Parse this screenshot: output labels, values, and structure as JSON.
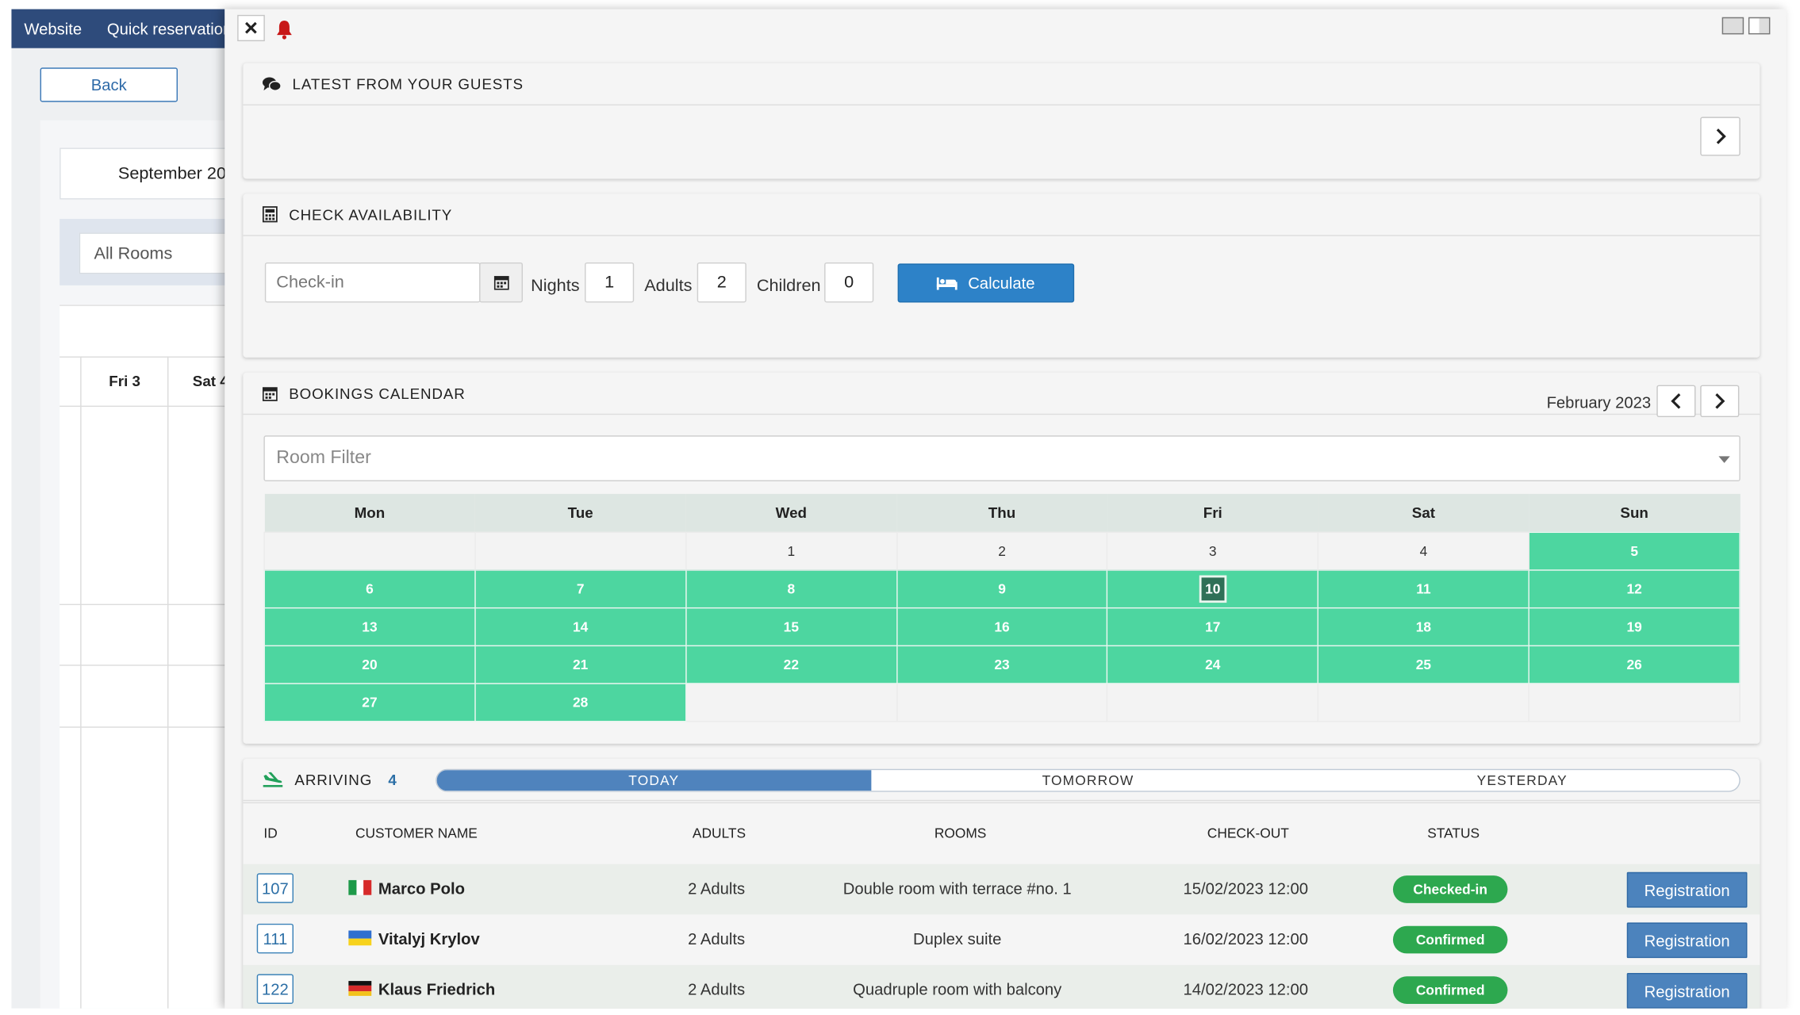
{
  "background": {
    "topbar": [
      "Website",
      "Quick reservation"
    ],
    "back_label": "Back",
    "month_label": "September 20",
    "rooms_filter": "All Rooms",
    "day_headers": [
      "Fri 3",
      "Sat 4"
    ]
  },
  "guests": {
    "title": "LATEST FROM YOUR GUESTS"
  },
  "availability": {
    "title": "CHECK AVAILABILITY",
    "checkin_placeholder": "Check-in",
    "nights_label": "Nights",
    "nights_value": "1",
    "adults_label": "Adults",
    "adults_value": "2",
    "children_label": "Children",
    "children_value": "0",
    "calculate_label": "Calculate"
  },
  "calendar": {
    "title": "BOOKINGS CALENDAR",
    "month": "February 2023",
    "room_filter_placeholder": "Room Filter",
    "weekdays": [
      "Mon",
      "Tue",
      "Wed",
      "Thu",
      "Fri",
      "Sat",
      "Sun"
    ],
    "weeks": [
      [
        "",
        "",
        "1",
        "2",
        "3",
        "4",
        "5"
      ],
      [
        "6",
        "7",
        "8",
        "9",
        "10",
        "11",
        "12"
      ],
      [
        "13",
        "14",
        "15",
        "16",
        "17",
        "18",
        "19"
      ],
      [
        "20",
        "21",
        "22",
        "23",
        "24",
        "25",
        "26"
      ],
      [
        "27",
        "28",
        "",
        "",
        "",
        "",
        ""
      ]
    ],
    "booked_from": 5,
    "booked_to": 28,
    "today": 10,
    "colors": {
      "booked": "#4dd6a0",
      "today": "#2f7057"
    }
  },
  "arriving": {
    "title": "ARRIVING",
    "count": "4",
    "tabs": [
      "TODAY",
      "TOMORROW",
      "YESTERDAY"
    ],
    "active_tab": 0,
    "columns": [
      "ID",
      "CUSTOMER NAME",
      "ADULTS",
      "ROOMS",
      "CHECK-OUT",
      "STATUS"
    ],
    "rows": [
      {
        "id": "107",
        "flag": "it",
        "name": "Marco Polo",
        "adults": "2 Adults",
        "room": "Double room with terrace #no. 1",
        "checkout": "15/02/2023 12:00",
        "status": "Checked-in",
        "action": "Registration"
      },
      {
        "id": "111",
        "flag": "ua",
        "name": "Vitalyj Krylov",
        "adults": "2 Adults",
        "room": "Duplex suite",
        "checkout": "16/02/2023 12:00",
        "status": "Confirmed",
        "action": "Registration"
      },
      {
        "id": "122",
        "flag": "de",
        "name": "Klaus Friedrich",
        "adults": "2 Adults",
        "room": "Quadruple room with balcony",
        "checkout": "14/02/2023 12:00",
        "status": "Confirmed",
        "action": "Registration"
      }
    ]
  }
}
